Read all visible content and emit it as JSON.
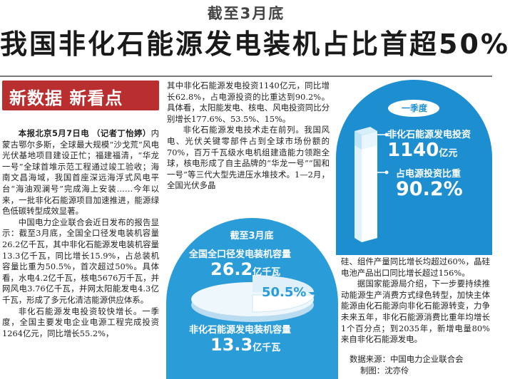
{
  "header": {
    "kicker": "截至3月底",
    "headline": "我国非化石能源发电装机占比首超50%"
  },
  "banner": "新数据 新看点",
  "column1": {
    "dateline": "本报北京5月7日电",
    "byline": "（记者丁怡婷）",
    "p1_rest": "内蒙古鄂尔多斯，全球最大规模“沙戈荒”风电光伏基地项目建设正忙；福建福清，“华龙一号”全球首堆示范工程通过竣工验收；海南文昌海域，我国首座深远海浮式风电平台“海油观澜号”完成海上安装……今年以来，一批非化石能源项目加速推进，能源绿色低碳转型成效显著。",
    "p2": "中国电力企业联合会近日发布的报告显示：截至3月底，全国全口径发电装机容量26.2亿千瓦，其中非化石能源发电装机容量13.3亿千瓦，同比增长15.9%，占总装机容量比重为50.5%，首次超过50%。具体看，水电4.2亿千瓦，核电5676万千瓦，并网风电3.76亿千瓦，并网太阳能发电4.3亿千瓦，形成了多元化清洁能源供应体系。",
    "p3": "非化石能源发电投资较快增长。一季度，全国主要发电企业电源工程完成投资1264亿元，同比增长55.2%，"
  },
  "column2": {
    "p1": "其中非化石能源发电投资1140亿元，同比增长62.8%，占电源投资的比重达到90.2%。具体看，太阳能发电、核电、风电投资同比分别增长177.6%、53.5%、15%。",
    "p2": "非化石能源发电技术走在前列。我国风电、光伏关键零部件占到全球市场份额的70%，百万千瓦级水电机组建造能力领跑全球，核电形成了自主品牌的“华龙一号”“国和一号”等三代大型先进压水堆技术。1—2月，全国光伏多晶"
  },
  "column3": {
    "p1": "硅、组件产量同比增长均超过60%，晶硅电池产品出口同比增长超过156%。",
    "p2": "据国家能源局介绍，下一步要持续推动能源生产消费方式绿色转型，加快主体能源由化石能源向非化石能源转变，力争未来五年，非化石能源消费比重年均增长1个百分点；到2035年，新增电量80%来自非化石能源发电。",
    "source": "数据来源：中国电力企业联合会",
    "credit": "制图：沈亦伶"
  },
  "infographic_q1": {
    "period": "一季度",
    "invest_label": "非化石能源发电投资",
    "invest_value": "1140",
    "invest_unit": "亿元",
    "share_label": "占电源投资比重",
    "share_value": "90.2%",
    "share_fraction": 0.902,
    "color": "#1d8fd0"
  },
  "infographic_mar": {
    "period": "截至3月底",
    "total_label": "全国全口径发电装机容量",
    "total_value": "26.2",
    "total_unit": "亿千瓦",
    "pct": "50.5%",
    "nonfossil_label": "非化石能源发电装机容量",
    "nonfossil_value": "13.3",
    "nonfossil_unit": "亿千瓦",
    "color": "#2a9cd8"
  }
}
